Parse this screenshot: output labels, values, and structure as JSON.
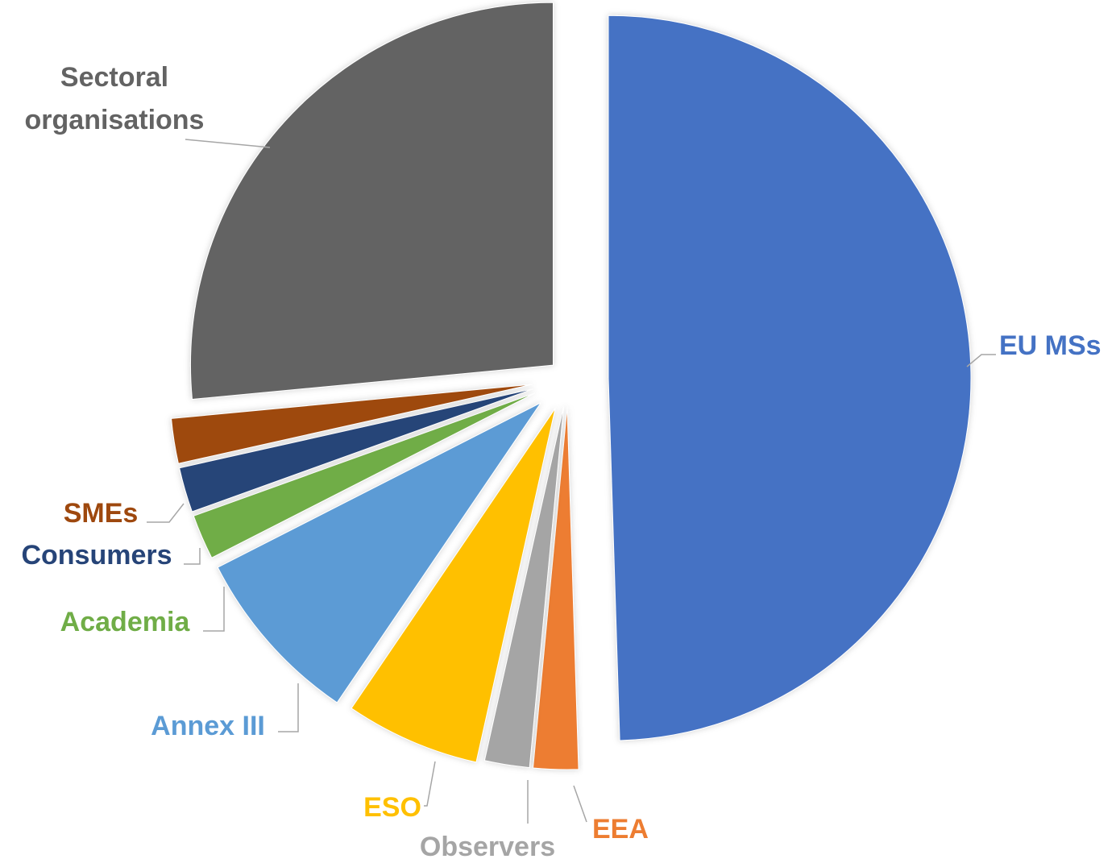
{
  "chart_data": {
    "type": "pie",
    "exploded": true,
    "start_angle_deg": 0,
    "direction": "clockwise",
    "labels_visible": true,
    "legend": "none",
    "slices": [
      {
        "label": "EU MSs",
        "label_lines": [
          "EU MSs"
        ],
        "value": 49.5,
        "color": "#4472C4"
      },
      {
        "label": "EEA",
        "label_lines": [
          "EEA"
        ],
        "value": 2.0,
        "color": "#ED7D31"
      },
      {
        "label": "Observers",
        "label_lines": [
          "Observers"
        ],
        "value": 2.0,
        "color": "#A5A5A5"
      },
      {
        "label": "ESO",
        "label_lines": [
          "ESO"
        ],
        "value": 6.0,
        "color": "#FFC000"
      },
      {
        "label": "Annex III",
        "label_lines": [
          "Annex III"
        ],
        "value": 8.0,
        "color": "#5B9BD5"
      },
      {
        "label": "Academia",
        "label_lines": [
          "Academia"
        ],
        "value": 2.0,
        "color": "#70AD47"
      },
      {
        "label": "Consumers",
        "label_lines": [
          "Consumers"
        ],
        "value": 2.0,
        "color": "#264478"
      },
      {
        "label": "SMEs",
        "label_lines": [
          "SMEs"
        ],
        "value": 2.0,
        "color": "#9E480E"
      },
      {
        "label": "Sectoral organisations",
        "label_lines": [
          "Sectoral",
          "organisations"
        ],
        "value": 26.5,
        "color": "#636363"
      }
    ]
  }
}
